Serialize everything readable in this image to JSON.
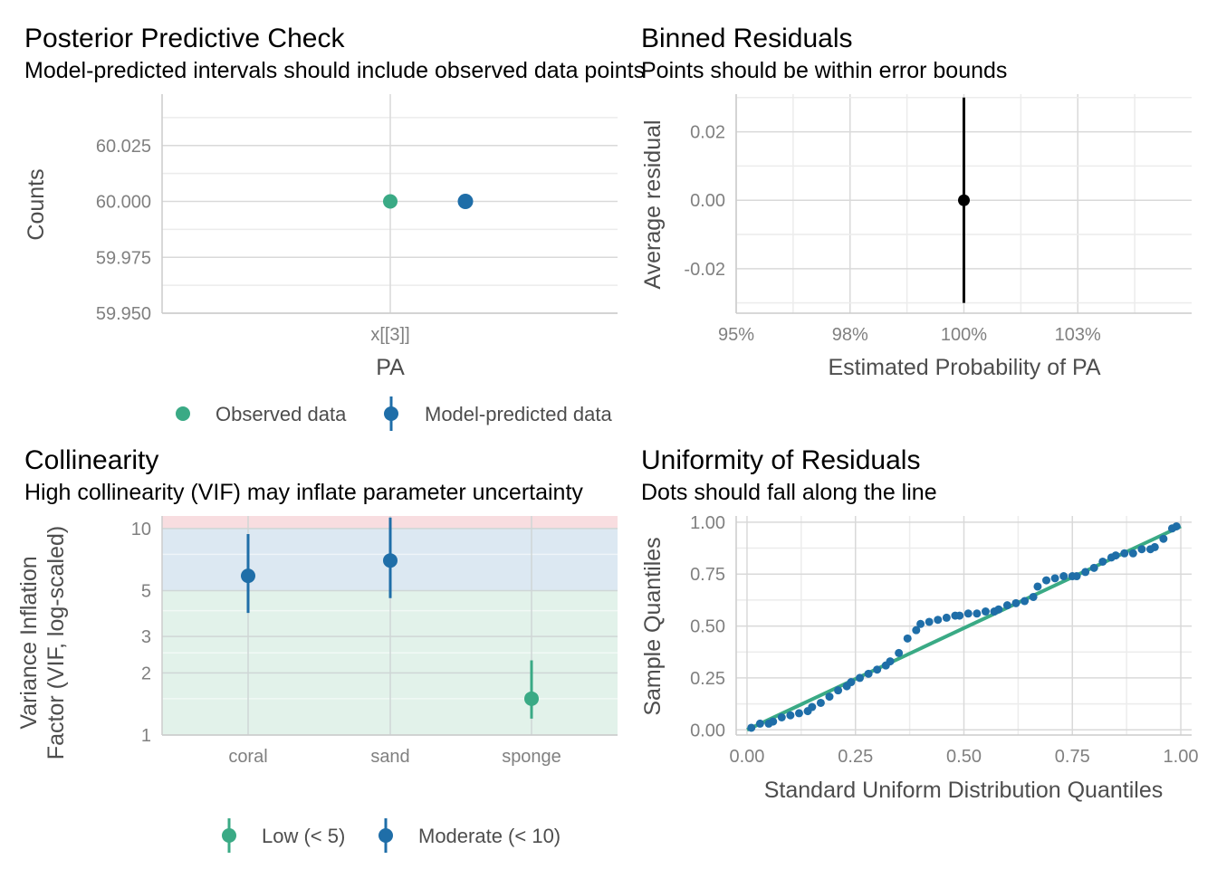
{
  "colors": {
    "observed": "#3aaa85",
    "predicted": "#1f6ea8",
    "low": "#3aaa85",
    "moderate": "#1f6ea8",
    "zone_low": "#e2f2ea",
    "zone_moderate": "#dce8f2",
    "zone_high": "#f8dde0",
    "qq_line": "#3aaa85",
    "qq_points": "#1f6ea8",
    "binned": "#000000",
    "grid_major": "#d9d9d9",
    "grid_minor": "#ececec"
  },
  "chart_data": [
    {
      "id": "ppc",
      "type": "scatter",
      "title": "Posterior Predictive Check",
      "subtitle": "Model-predicted intervals should include observed data points",
      "xlabel": "PA",
      "ylabel": "Counts",
      "categories": [
        "x[[3]]"
      ],
      "ylim": [
        59.95,
        60.048
      ],
      "yticks": [
        59.95,
        59.975,
        60.0,
        60.025
      ],
      "ytick_labels": [
        "59.950",
        "59.975",
        "60.000",
        "60.025"
      ],
      "series": [
        {
          "name": "Observed data",
          "category": "x[[3]]",
          "value": 60.0,
          "lower": 60.0,
          "upper": 60.0
        },
        {
          "name": "Model-predicted data",
          "category": "x[[3]]",
          "value": 60.0,
          "lower": 60.0,
          "upper": 60.0
        }
      ],
      "legend": {
        "position": "bottom",
        "items": [
          "Observed data",
          "Model-predicted data"
        ]
      }
    },
    {
      "id": "binned",
      "type": "scatter",
      "title": "Binned Residuals",
      "subtitle": "Points should be within error bounds",
      "xlabel": "Estimated Probability of PA",
      "ylabel": "Average residual",
      "xlim": [
        0.95,
        1.05
      ],
      "ylim": [
        -0.033,
        0.031
      ],
      "xticks": [
        0.95,
        0.975,
        1.0,
        1.025
      ],
      "xtick_labels": [
        "95%",
        "98%",
        "100%",
        "103%"
      ],
      "yticks": [
        -0.02,
        0.0,
        0.02
      ],
      "ytick_labels": [
        "-0.02",
        "0.00",
        "0.02"
      ],
      "points": [
        {
          "x": 1.0,
          "y": 0.0,
          "lower": -0.03,
          "upper": 0.03
        }
      ]
    },
    {
      "id": "collinearity",
      "type": "scatter",
      "title": "Collinearity",
      "subtitle": "High collinearity (VIF) may inflate parameter uncertainty",
      "xlabel": "",
      "ylabel_lines": [
        "Variance Inflation",
        "Factor (VIF, log-scaled)"
      ],
      "scale": "log",
      "categories": [
        "coral",
        "sand",
        "sponge"
      ],
      "ylim": [
        1,
        11.5
      ],
      "yticks": [
        1,
        2,
        3,
        5,
        10
      ],
      "ytick_labels": [
        "1",
        "2",
        "3",
        "5",
        "10"
      ],
      "zones": [
        {
          "level": "low",
          "from": 1,
          "to": 5
        },
        {
          "level": "moderate",
          "from": 5,
          "to": 10
        },
        {
          "level": "high",
          "from": 10,
          "to": 11.5
        }
      ],
      "points": [
        {
          "category": "coral",
          "vif": 5.9,
          "lower": 3.9,
          "upper": 9.4,
          "level": "moderate"
        },
        {
          "category": "sand",
          "vif": 7.0,
          "lower": 4.6,
          "upper": 11.3,
          "level": "moderate"
        },
        {
          "category": "sponge",
          "vif": 1.5,
          "lower": 1.2,
          "upper": 2.3,
          "level": "low"
        }
      ],
      "legend": {
        "position": "bottom",
        "items": [
          "Low (< 5)",
          "Moderate (< 10)"
        ]
      }
    },
    {
      "id": "qq",
      "type": "scatter",
      "title": "Uniformity of Residuals",
      "subtitle": "Dots should fall along the line",
      "xlabel": "Standard Uniform Distribution Quantiles",
      "ylabel": "Sample Quantiles",
      "xlim": [
        -0.025,
        1.025
      ],
      "ylim": [
        -0.025,
        1.03
      ],
      "xticks": [
        0,
        0.25,
        0.5,
        0.75,
        1.0
      ],
      "xtick_labels": [
        "0.00",
        "0.25",
        "0.50",
        "0.75",
        "1.00"
      ],
      "yticks": [
        0,
        0.25,
        0.5,
        0.75,
        1.0
      ],
      "ytick_labels": [
        "0.00",
        "0.25",
        "0.50",
        "0.75",
        "1.00"
      ],
      "line": [
        [
          0,
          0
        ],
        [
          1,
          0.98
        ]
      ],
      "x": [
        0.01,
        0.03,
        0.05,
        0.06,
        0.08,
        0.1,
        0.12,
        0.14,
        0.15,
        0.17,
        0.19,
        0.21,
        0.23,
        0.24,
        0.26,
        0.28,
        0.3,
        0.32,
        0.33,
        0.35,
        0.37,
        0.39,
        0.4,
        0.42,
        0.44,
        0.46,
        0.48,
        0.49,
        0.51,
        0.53,
        0.55,
        0.57,
        0.58,
        0.6,
        0.62,
        0.64,
        0.66,
        0.67,
        0.69,
        0.71,
        0.73,
        0.75,
        0.76,
        0.78,
        0.8,
        0.82,
        0.84,
        0.85,
        0.87,
        0.89,
        0.91,
        0.93,
        0.94,
        0.96,
        0.98,
        0.99
      ],
      "y": [
        0.01,
        0.03,
        0.03,
        0.04,
        0.06,
        0.07,
        0.08,
        0.09,
        0.11,
        0.13,
        0.16,
        0.19,
        0.21,
        0.23,
        0.25,
        0.27,
        0.29,
        0.31,
        0.33,
        0.37,
        0.44,
        0.48,
        0.51,
        0.52,
        0.53,
        0.54,
        0.55,
        0.55,
        0.56,
        0.56,
        0.57,
        0.57,
        0.58,
        0.6,
        0.61,
        0.62,
        0.64,
        0.69,
        0.72,
        0.73,
        0.74,
        0.74,
        0.74,
        0.76,
        0.78,
        0.81,
        0.83,
        0.84,
        0.85,
        0.85,
        0.87,
        0.87,
        0.88,
        0.92,
        0.97,
        0.98
      ]
    }
  ]
}
